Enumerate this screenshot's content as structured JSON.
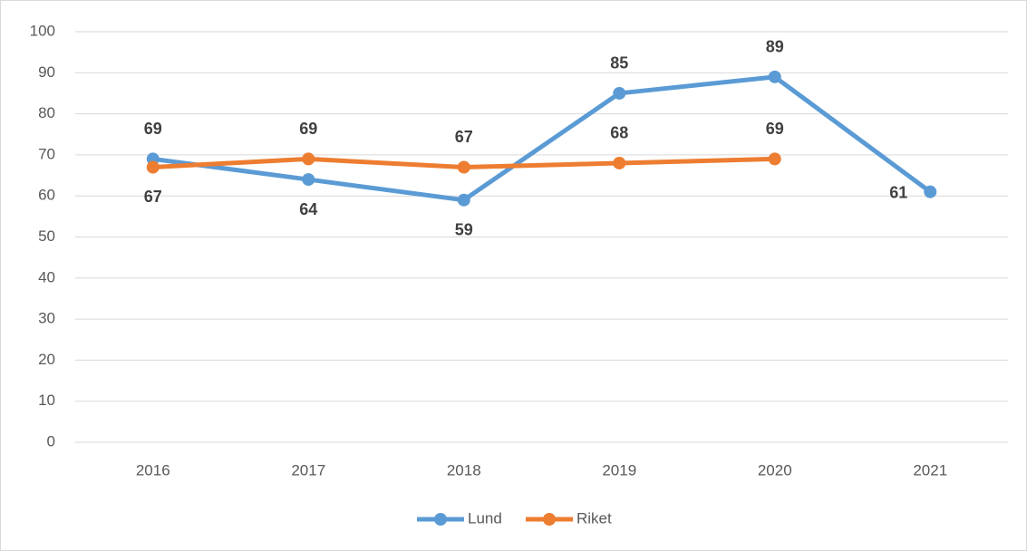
{
  "chart_data": {
    "type": "line",
    "categories": [
      "2016",
      "2017",
      "2018",
      "2019",
      "2020",
      "2021"
    ],
    "series": [
      {
        "name": "Lund",
        "color": "#5b9bd5",
        "values": [
          69,
          64,
          59,
          85,
          89,
          61
        ]
      },
      {
        "name": "Riket",
        "color": "#ed7d31",
        "values": [
          67,
          69,
          67,
          68,
          69,
          null
        ]
      }
    ],
    "ylim": [
      0,
      100
    ],
    "yticks": [
      0,
      10,
      20,
      30,
      40,
      50,
      60,
      70,
      80,
      90,
      100
    ],
    "grid": true,
    "legend": "bottom",
    "data_labels": true
  }
}
